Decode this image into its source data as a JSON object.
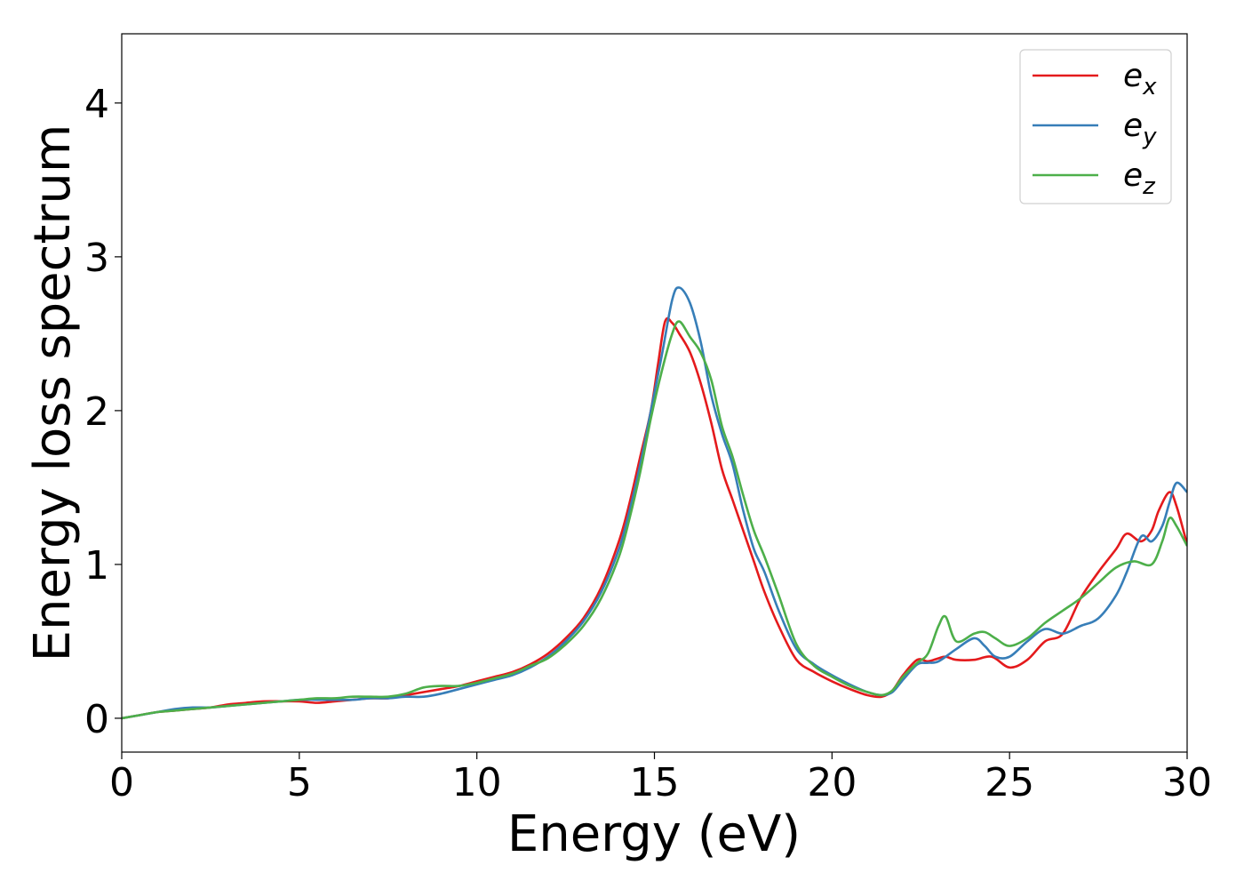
{
  "chart_data": {
    "type": "line",
    "title": "",
    "xlabel": "Energy (eV)",
    "ylabel": "Energy loss spectrum",
    "xlim": [
      0,
      30
    ],
    "ylim": [
      -0.22,
      4.45
    ],
    "xticks": [
      0,
      5,
      10,
      15,
      20,
      25,
      30
    ],
    "yticks": [
      0,
      1,
      2,
      3,
      4
    ],
    "xtick_labels": [
      "0",
      "5",
      "10",
      "15",
      "20",
      "25",
      "30"
    ],
    "ytick_labels": [
      "0",
      "1",
      "2",
      "3",
      "4"
    ],
    "grid": false,
    "legend_position": "top-right",
    "series": [
      {
        "name": "e_x",
        "legend_base": "e",
        "legend_sub": "x",
        "color": "#e41a1c",
        "x": [
          0,
          0.5,
          1,
          1.5,
          2,
          2.5,
          3,
          3.5,
          4,
          4.5,
          5,
          5.5,
          6,
          6.5,
          7,
          7.5,
          8,
          8.5,
          9,
          9.5,
          10,
          10.5,
          11,
          11.5,
          12,
          12.5,
          13,
          13.5,
          14,
          14.3,
          14.6,
          14.9,
          15.1,
          15.3,
          15.5,
          15.7,
          16,
          16.3,
          16.6,
          16.9,
          17.2,
          17.5,
          17.8,
          18.1,
          18.5,
          19,
          19.5,
          20,
          20.5,
          21,
          21.4,
          21.7,
          22,
          22.4,
          22.7,
          23,
          23.2,
          23.5,
          24,
          24.5,
          25,
          25.5,
          26,
          26.5,
          27,
          27.5,
          28,
          28.3,
          28.7,
          29,
          29.2,
          29.5,
          29.7,
          30
        ],
        "y": [
          0,
          0.02,
          0.04,
          0.05,
          0.06,
          0.07,
          0.09,
          0.1,
          0.11,
          0.11,
          0.11,
          0.1,
          0.11,
          0.12,
          0.13,
          0.13,
          0.15,
          0.17,
          0.19,
          0.21,
          0.24,
          0.27,
          0.3,
          0.35,
          0.42,
          0.52,
          0.65,
          0.85,
          1.15,
          1.4,
          1.7,
          2.0,
          2.3,
          2.58,
          2.57,
          2.5,
          2.38,
          2.18,
          1.92,
          1.62,
          1.42,
          1.22,
          1.02,
          0.82,
          0.6,
          0.38,
          0.3,
          0.24,
          0.19,
          0.15,
          0.14,
          0.18,
          0.28,
          0.38,
          0.37,
          0.39,
          0.4,
          0.38,
          0.38,
          0.4,
          0.33,
          0.38,
          0.5,
          0.55,
          0.78,
          0.95,
          1.1,
          1.2,
          1.15,
          1.22,
          1.35,
          1.47,
          1.38,
          1.13
        ]
      },
      {
        "name": "e_y",
        "legend_base": "e",
        "legend_sub": "y",
        "color": "#377eb8",
        "x": [
          0,
          0.5,
          1,
          1.5,
          2,
          2.5,
          3,
          3.5,
          4,
          4.5,
          5,
          5.5,
          6,
          6.5,
          7,
          7.5,
          8,
          8.5,
          9,
          9.5,
          10,
          10.5,
          11,
          11.5,
          12,
          12.5,
          13,
          13.5,
          14,
          14.3,
          14.6,
          14.9,
          15.2,
          15.5,
          15.7,
          16,
          16.3,
          16.6,
          16.9,
          17.2,
          17.5,
          17.8,
          18.1,
          18.5,
          19,
          19.5,
          20,
          20.5,
          21,
          21.4,
          21.7,
          22,
          22.4,
          22.7,
          23,
          23.5,
          24,
          24.3,
          24.6,
          25,
          25.5,
          26,
          26.5,
          27,
          27.5,
          28,
          28.3,
          28.7,
          29,
          29.3,
          29.5,
          29.7,
          30
        ],
        "y": [
          0,
          0.02,
          0.04,
          0.06,
          0.07,
          0.07,
          0.08,
          0.09,
          0.1,
          0.11,
          0.12,
          0.12,
          0.12,
          0.12,
          0.13,
          0.13,
          0.14,
          0.14,
          0.16,
          0.19,
          0.22,
          0.25,
          0.28,
          0.33,
          0.4,
          0.5,
          0.63,
          0.82,
          1.1,
          1.35,
          1.65,
          2.0,
          2.35,
          2.72,
          2.8,
          2.7,
          2.45,
          2.1,
          1.85,
          1.65,
          1.35,
          1.1,
          0.95,
          0.7,
          0.45,
          0.35,
          0.28,
          0.22,
          0.17,
          0.15,
          0.17,
          0.25,
          0.35,
          0.36,
          0.37,
          0.45,
          0.52,
          0.47,
          0.4,
          0.4,
          0.5,
          0.58,
          0.55,
          0.6,
          0.65,
          0.8,
          0.95,
          1.18,
          1.15,
          1.25,
          1.4,
          1.53,
          1.47
        ]
      },
      {
        "name": "e_z",
        "legend_base": "e",
        "legend_sub": "z",
        "color": "#4daf4a",
        "x": [
          0,
          0.5,
          1,
          1.5,
          2,
          2.5,
          3,
          3.5,
          4,
          4.5,
          5,
          5.5,
          6,
          6.5,
          7,
          7.5,
          8,
          8.5,
          9,
          9.5,
          10,
          10.5,
          11,
          11.5,
          12,
          12.5,
          13,
          13.5,
          14,
          14.3,
          14.6,
          14.9,
          15.2,
          15.5,
          15.7,
          16,
          16.3,
          16.6,
          16.9,
          17.2,
          17.5,
          17.8,
          18.1,
          18.5,
          19,
          19.5,
          20,
          20.5,
          21,
          21.4,
          21.7,
          22,
          22.4,
          22.7,
          23,
          23.2,
          23.5,
          24,
          24.3,
          24.6,
          25,
          25.5,
          26,
          26.5,
          27,
          27.5,
          28,
          28.5,
          29,
          29.3,
          29.5,
          29.7,
          30
        ],
        "y": [
          0,
          0.02,
          0.04,
          0.05,
          0.06,
          0.07,
          0.08,
          0.09,
          0.1,
          0.11,
          0.12,
          0.13,
          0.13,
          0.14,
          0.14,
          0.14,
          0.16,
          0.2,
          0.21,
          0.21,
          0.23,
          0.26,
          0.29,
          0.34,
          0.39,
          0.48,
          0.6,
          0.78,
          1.05,
          1.3,
          1.6,
          1.95,
          2.25,
          2.5,
          2.58,
          2.48,
          2.38,
          2.2,
          1.9,
          1.7,
          1.45,
          1.22,
          1.05,
          0.8,
          0.48,
          0.34,
          0.27,
          0.21,
          0.17,
          0.15,
          0.18,
          0.27,
          0.36,
          0.42,
          0.6,
          0.66,
          0.5,
          0.55,
          0.56,
          0.52,
          0.47,
          0.52,
          0.62,
          0.7,
          0.78,
          0.88,
          0.98,
          1.02,
          1.0,
          1.15,
          1.3,
          1.25,
          1.12
        ]
      }
    ]
  }
}
